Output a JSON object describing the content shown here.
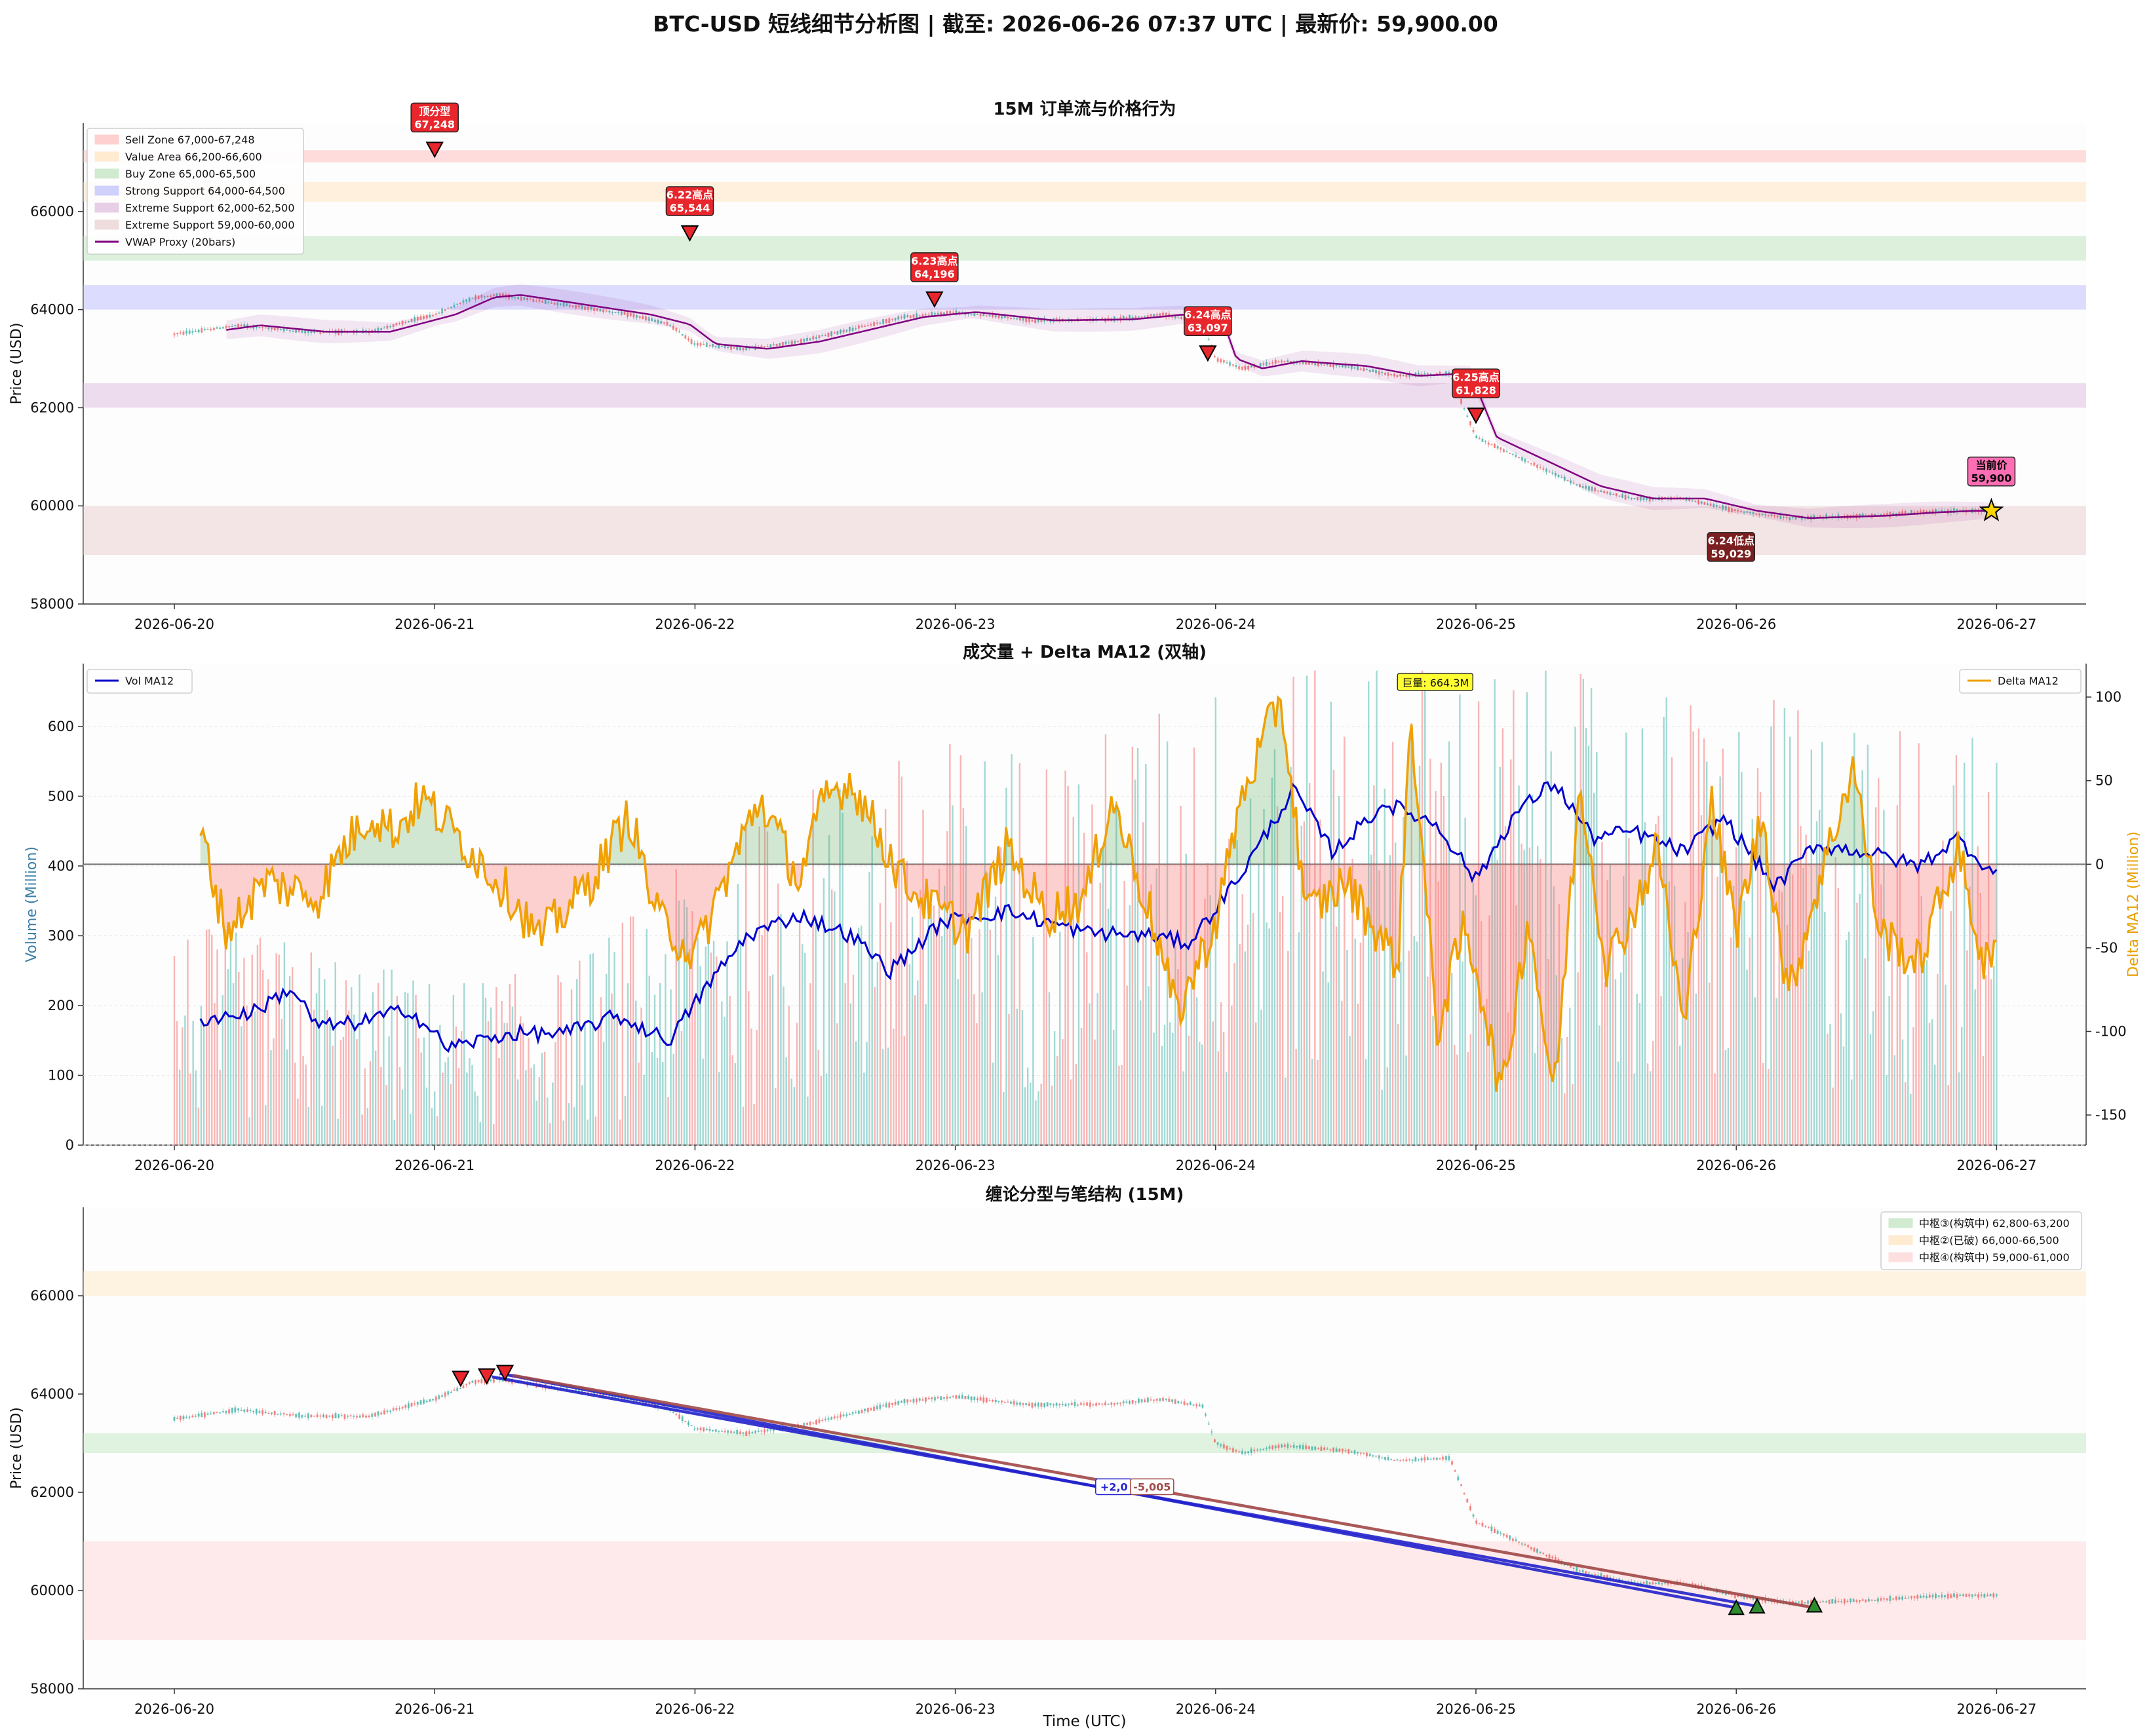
{
  "title": "BTC-USD 短线细节分析图 | 截至: 2026-06-26 07:37 UTC | 最新价: 59,900.00",
  "dates": [
    "2026-06-20",
    "2026-06-21",
    "2026-06-22",
    "2026-06-23",
    "2026-06-24",
    "2026-06-25",
    "2026-06-26",
    "2026-06-27"
  ],
  "colors": {
    "up": "#26a69a",
    "down": "#ef5350",
    "vwap": "#800080",
    "vol": "#0000cc",
    "delta": "#f0a000",
    "delta_pos": "#3a9a3a",
    "delta_neg": "#ff6b6b",
    "marker_red": "#e8262c",
    "marker_dark": "#7a1f1f",
    "current": "#ff6eb4",
    "star": "#ffd400"
  },
  "chart_data": [
    {
      "type": "line",
      "title": "15M 订单流与价格行为",
      "ylabel": "Price (USD)",
      "ylim": [
        58000,
        67800
      ],
      "y_ticks": [
        58000,
        60000,
        62000,
        64000,
        66000
      ],
      "x_range": [
        "2026-06-19T16:00",
        "2026-06-27T06:00"
      ],
      "zones": [
        {
          "label": "Sell Zone 67,000-67,248",
          "from": 67000,
          "to": 67248,
          "color": "#ffb3b3"
        },
        {
          "label": "Value Area 66,200-66,600",
          "from": 66200,
          "to": 66600,
          "color": "#ffe0b3"
        },
        {
          "label": "Buy Zone 65,000-65,500",
          "from": 65000,
          "to": 65500,
          "color": "#b3e0b3"
        },
        {
          "label": "Strong Support 64,000-64,500",
          "from": 64000,
          "to": 64500,
          "color": "#b3b3ff"
        },
        {
          "label": "Extreme Support 62,000-62,500",
          "from": 62000,
          "to": 62500,
          "color": "#d9b3d9"
        },
        {
          "label": "Extreme Support 59,000-60,000",
          "from": 59000,
          "to": 60000,
          "color": "#e6c7c7"
        }
      ],
      "vwap_label": "VWAP Proxy (20bars)",
      "price_path": [
        [
          0,
          63500
        ],
        [
          0.25,
          63680
        ],
        [
          0.5,
          63550
        ],
        [
          0.75,
          63550
        ],
        [
          1.0,
          63900
        ],
        [
          1.15,
          64250
        ],
        [
          1.25,
          64300
        ],
        [
          1.5,
          64100
        ],
        [
          1.75,
          63900
        ],
        [
          1.9,
          63700
        ],
        [
          2.0,
          63300
        ],
        [
          2.2,
          63200
        ],
        [
          2.4,
          63350
        ],
        [
          2.6,
          63600
        ],
        [
          2.8,
          63850
        ],
        [
          3.0,
          63950
        ],
        [
          3.3,
          63780
        ],
        [
          3.6,
          63800
        ],
        [
          3.8,
          63900
        ],
        [
          3.95,
          63750
        ],
        [
          4.0,
          63000
        ],
        [
          4.1,
          62800
        ],
        [
          4.25,
          62950
        ],
        [
          4.5,
          62850
        ],
        [
          4.7,
          62650
        ],
        [
          4.9,
          62700
        ],
        [
          5.0,
          61400
        ],
        [
          5.2,
          60900
        ],
        [
          5.4,
          60400
        ],
        [
          5.6,
          60150
        ],
        [
          5.8,
          60150
        ],
        [
          6.0,
          59900
        ],
        [
          6.2,
          59750
        ],
        [
          6.5,
          59800
        ],
        [
          6.7,
          59870
        ],
        [
          6.85,
          59900
        ],
        [
          7.0,
          59900
        ]
      ],
      "markers": [
        {
          "label": "顶分型",
          "value": "67,248",
          "x": 1.0,
          "y": 67248,
          "style": "red"
        },
        {
          "label": "6.22高点",
          "value": "65,544",
          "x": 1.98,
          "y": 65544,
          "style": "red"
        },
        {
          "label": "6.23高点",
          "value": "64,196",
          "x": 2.92,
          "y": 64196,
          "style": "red"
        },
        {
          "label": "6.24高点",
          "value": "63,097",
          "x": 3.97,
          "y": 63097,
          "style": "red"
        },
        {
          "label": "6.25高点",
          "value": "61,828",
          "x": 5.0,
          "y": 61828,
          "style": "red"
        },
        {
          "label": "6.24低点",
          "value": "59,029",
          "x": 5.98,
          "y": 59029,
          "style": "dark"
        },
        {
          "label": "当前价",
          "value": "59,900",
          "x": 6.98,
          "y": 59900,
          "style": "current"
        }
      ]
    },
    {
      "type": "bar",
      "title": "成交量 + Delta MA12 (双轴)",
      "ylabel": "Volume (Million)",
      "ylabel_right": "Delta MA12 (Million)",
      "ylim": [
        0,
        690
      ],
      "y_ticks": [
        0,
        100,
        200,
        300,
        400,
        500,
        600
      ],
      "ylim_right": [
        -168,
        120
      ],
      "y_ticks_right": [
        -150,
        -100,
        -50,
        0,
        50,
        100
      ],
      "series": [
        {
          "name": "Vol MA12",
          "points": [
            [
              0.1,
              180
            ],
            [
              0.3,
              190
            ],
            [
              0.45,
              225
            ],
            [
              0.55,
              170
            ],
            [
              0.7,
              175
            ],
            [
              0.9,
              195
            ],
            [
              1.05,
              140
            ],
            [
              1.3,
              160
            ],
            [
              1.5,
              160
            ],
            [
              1.7,
              185
            ],
            [
              1.9,
              150
            ],
            [
              2.05,
              230
            ],
            [
              2.2,
              300
            ],
            [
              2.4,
              330
            ],
            [
              2.6,
              300
            ],
            [
              2.75,
              250
            ],
            [
              2.95,
              320
            ],
            [
              3.2,
              335
            ],
            [
              3.5,
              305
            ],
            [
              3.75,
              300
            ],
            [
              3.9,
              290
            ],
            [
              4.1,
              390
            ],
            [
              4.3,
              510
            ],
            [
              4.45,
              420
            ],
            [
              4.65,
              490
            ],
            [
              4.85,
              460
            ],
            [
              5.0,
              380
            ],
            [
              5.15,
              475
            ],
            [
              5.3,
              520
            ],
            [
              5.45,
              440
            ],
            [
              5.6,
              450
            ],
            [
              5.8,
              420
            ],
            [
              5.95,
              470
            ],
            [
              6.15,
              370
            ],
            [
              6.3,
              430
            ],
            [
              6.5,
              420
            ],
            [
              6.7,
              400
            ],
            [
              6.85,
              440
            ],
            [
              7.0,
              385
            ]
          ]
        },
        {
          "name": "Delta MA12",
          "points": [
            [
              0.1,
              20
            ],
            [
              0.2,
              -40
            ],
            [
              0.35,
              -10
            ],
            [
              0.55,
              -20
            ],
            [
              0.65,
              10
            ],
            [
              0.75,
              30
            ],
            [
              0.85,
              20
            ],
            [
              0.95,
              40
            ],
            [
              1.1,
              15
            ],
            [
              1.3,
              -20
            ],
            [
              1.4,
              -45
            ],
            [
              1.6,
              -10
            ],
            [
              1.75,
              30
            ],
            [
              1.85,
              -30
            ],
            [
              2.0,
              -55
            ],
            [
              2.1,
              -15
            ],
            [
              2.25,
              40
            ],
            [
              2.4,
              -10
            ],
            [
              2.5,
              40
            ],
            [
              2.6,
              50
            ],
            [
              2.8,
              -10
            ],
            [
              2.95,
              -30
            ],
            [
              3.05,
              -40
            ],
            [
              3.2,
              10
            ],
            [
              3.35,
              -30
            ],
            [
              3.5,
              -20
            ],
            [
              3.6,
              40
            ],
            [
              3.75,
              -30
            ],
            [
              3.85,
              -90
            ],
            [
              4.0,
              -35
            ],
            [
              4.1,
              40
            ],
            [
              4.25,
              100
            ],
            [
              4.35,
              -30
            ],
            [
              4.5,
              -10
            ],
            [
              4.7,
              -60
            ],
            [
              4.75,
              90
            ],
            [
              4.85,
              -100
            ],
            [
              4.95,
              -40
            ],
            [
              5.0,
              -60
            ],
            [
              5.1,
              -140
            ],
            [
              5.2,
              -30
            ],
            [
              5.3,
              -140
            ],
            [
              5.4,
              50
            ],
            [
              5.5,
              -60
            ],
            [
              5.6,
              -30
            ],
            [
              5.7,
              10
            ],
            [
              5.8,
              -100
            ],
            [
              5.9,
              40
            ],
            [
              6.0,
              -40
            ],
            [
              6.1,
              30
            ],
            [
              6.2,
              -80
            ],
            [
              6.3,
              -20
            ],
            [
              6.45,
              60
            ],
            [
              6.55,
              -40
            ],
            [
              6.7,
              -60
            ],
            [
              6.85,
              10
            ],
            [
              6.95,
              -60
            ],
            [
              7.0,
              -55
            ]
          ]
        }
      ],
      "volume_profile": [
        [
          0,
          230
        ],
        [
          0.5,
          210
        ],
        [
          1.0,
          170
        ],
        [
          1.5,
          180
        ],
        [
          2.0,
          300
        ],
        [
          2.5,
          380
        ],
        [
          3.0,
          420
        ],
        [
          3.5,
          420
        ],
        [
          4.0,
          480
        ],
        [
          4.5,
          520
        ],
        [
          5.0,
          500
        ],
        [
          5.5,
          480
        ],
        [
          6.0,
          460
        ],
        [
          6.5,
          450
        ],
        [
          7.0,
          420
        ]
      ],
      "annotation": "巨量: 664.3M"
    },
    {
      "type": "line",
      "title": "缠论分型与笔结构 (15M)",
      "ylabel": "Price (USD)",
      "xlabel": "Time (UTC)",
      "ylim": [
        58000,
        67800
      ],
      "y_ticks": [
        58000,
        60000,
        62000,
        64000,
        66000
      ],
      "zones": [
        {
          "label": "中枢③(构筑中) 62,800-63,200",
          "from": 62800,
          "to": 63200,
          "color": "#b3e0b3"
        },
        {
          "label": "中枢②(已破) 66,000-66,500",
          "from": 66000,
          "to": 66500,
          "color": "#ffe0b3"
        },
        {
          "label": "中枢④(构筑中) 59,000-61,000",
          "from": 59000,
          "to": 61000,
          "color": "#ffcccc"
        }
      ],
      "strokes": [
        {
          "from": [
            1.25,
            64420
          ],
          "to": [
            6.0,
            59650
          ],
          "color": "#2222cc"
        },
        {
          "from": [
            1.22,
            64350
          ],
          "to": [
            6.08,
            59680
          ],
          "color": "#2222cc"
        },
        {
          "from": [
            1.3,
            64380
          ],
          "to": [
            6.3,
            59650
          ],
          "color": "#a04848"
        }
      ],
      "tops": [
        [
          1.1,
          64300
        ],
        [
          1.2,
          64350
        ],
        [
          1.27,
          64420
        ]
      ],
      "bottoms": [
        [
          6.0,
          59650
        ],
        [
          6.08,
          59680
        ],
        [
          6.3,
          59700
        ]
      ],
      "labels": [
        "+2,0",
        "-5,005"
      ]
    }
  ]
}
